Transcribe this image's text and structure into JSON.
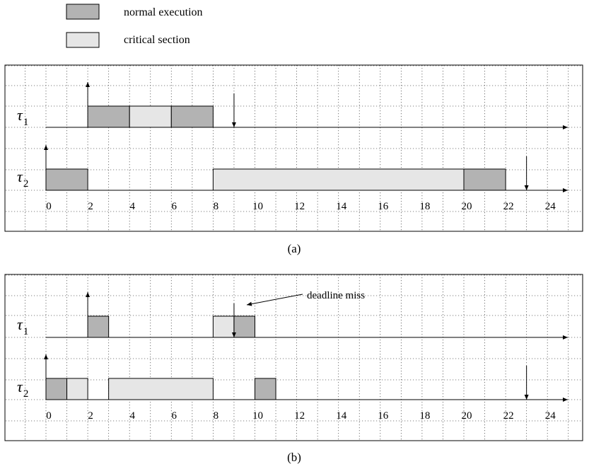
{
  "legend": {
    "items": [
      {
        "label": "normal execution",
        "color": "#b3b3b3"
      },
      {
        "label": "critical section",
        "color": "#e6e6e6"
      }
    ]
  },
  "time_axis": {
    "min": 0,
    "max": 25,
    "tick_labels": [
      "0",
      "2",
      "4",
      "6",
      "8",
      "10",
      "12",
      "14",
      "16",
      "18",
      "20",
      "22",
      "24"
    ]
  },
  "panels": [
    {
      "caption": "(a)",
      "tasks": [
        {
          "symbol": "τ",
          "index": "1",
          "segments": [
            {
              "start": 2,
              "end": 4,
              "kind": "normal"
            },
            {
              "start": 4,
              "end": 6,
              "kind": "critical"
            },
            {
              "start": 6,
              "end": 8,
              "kind": "normal"
            }
          ],
          "releases": [
            2
          ],
          "deadlines": [
            9
          ]
        },
        {
          "symbol": "τ",
          "index": "2",
          "segments": [
            {
              "start": 0,
              "end": 2,
              "kind": "normal"
            },
            {
              "start": 8,
              "end": 20,
              "kind": "critical"
            },
            {
              "start": 20,
              "end": 22,
              "kind": "normal"
            }
          ],
          "releases": [
            0
          ],
          "deadlines": [
            23
          ]
        }
      ]
    },
    {
      "caption": "(b)",
      "annotation": {
        "text": "deadline miss",
        "points_to_time": 9
      },
      "tasks": [
        {
          "symbol": "τ",
          "index": "1",
          "segments": [
            {
              "start": 2,
              "end": 3,
              "kind": "normal"
            },
            {
              "start": 8,
              "end": 9,
              "kind": "critical"
            },
            {
              "start": 9,
              "end": 10,
              "kind": "normal"
            }
          ],
          "releases": [
            2
          ],
          "deadlines": [
            9
          ]
        },
        {
          "symbol": "τ",
          "index": "2",
          "segments": [
            {
              "start": 0,
              "end": 1,
              "kind": "normal"
            },
            {
              "start": 1,
              "end": 2,
              "kind": "critical"
            },
            {
              "start": 3,
              "end": 8,
              "kind": "critical"
            },
            {
              "start": 10,
              "end": 11,
              "kind": "normal"
            }
          ],
          "releases": [
            0
          ],
          "deadlines": [
            23
          ]
        }
      ]
    }
  ]
}
